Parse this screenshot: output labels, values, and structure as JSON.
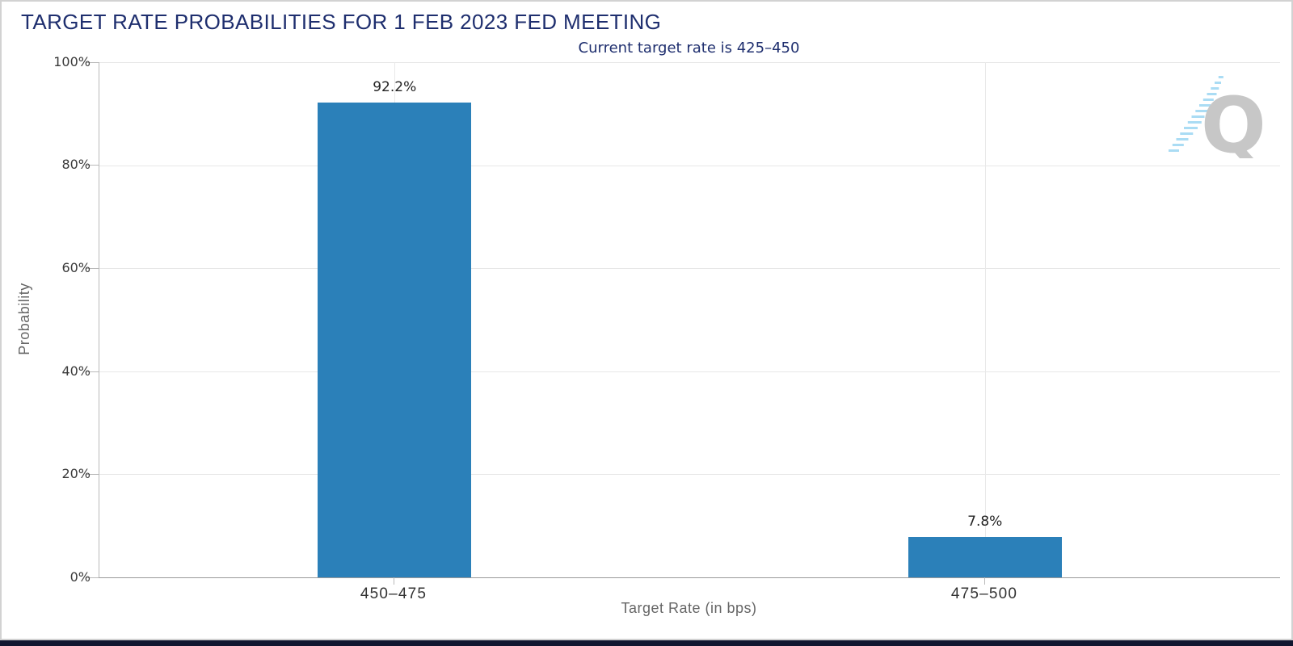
{
  "header": {
    "title": "TARGET RATE PROBABILITIES FOR 1 FEB 2023 FED MEETING",
    "subtitle": "Current target rate is 425–450"
  },
  "chart_data": {
    "type": "bar",
    "title": "TARGET RATE PROBABILITIES FOR 1 FEB 2023 FED MEETING",
    "subtitle": "Current target rate is 425–450",
    "categories": [
      "450–475",
      "475–500"
    ],
    "values": [
      92.2,
      7.8
    ],
    "value_labels": [
      "92.2%",
      "7.8%"
    ],
    "xlabel": "Target Rate (in bps)",
    "ylabel": "Probability",
    "ylim": [
      0,
      100
    ],
    "yticks": [
      "0%",
      "20%",
      "40%",
      "60%",
      "80%",
      "100%"
    ],
    "grid": true,
    "legend": "none",
    "bar_color": "#2B80B9",
    "title_color": "#1E2E6E",
    "footer_bar_color": "#11162F"
  },
  "logo": {
    "letter": "Q"
  }
}
